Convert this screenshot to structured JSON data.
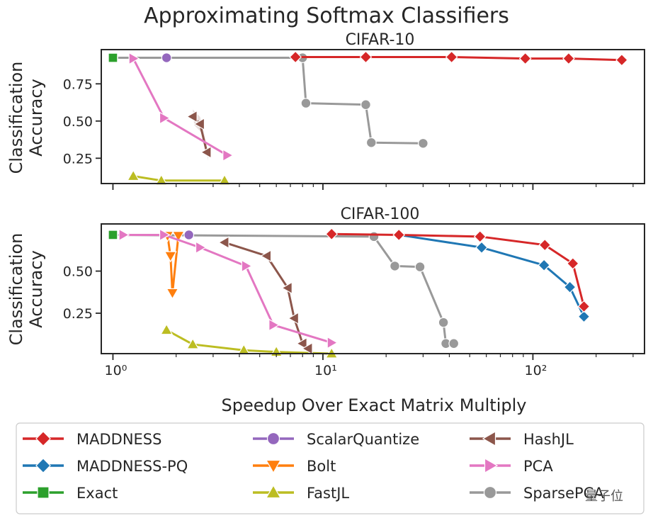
{
  "figure": {
    "title": "Approximating Softmax Classifiers",
    "xlabel": "Speedup Over Exact Matrix Multiply",
    "ylabel_line1": "Classification",
    "ylabel_line2": "Accuracy",
    "watermark": "量子位"
  },
  "chart_data": [
    {
      "type": "line",
      "title": "CIFAR-10",
      "xscale": "log",
      "xlim": [
        0.88,
        340
      ],
      "ylim": [
        0.08,
        0.98
      ],
      "yticks": [
        0.25,
        0.5,
        0.75
      ],
      "ytick_labels": [
        "0.25",
        "0.50",
        "0.75"
      ],
      "series": [
        {
          "name": "Exact",
          "x": [
            1.0
          ],
          "y": [
            0.925
          ]
        },
        {
          "name": "ScalarQuantize",
          "x": [
            1.8
          ],
          "y": [
            0.925
          ]
        },
        {
          "name": "MADDNESS",
          "x": [
            7.4,
            16,
            41,
            92,
            148,
            265
          ],
          "y": [
            0.93,
            0.93,
            0.93,
            0.92,
            0.92,
            0.91
          ]
        },
        {
          "name": "MADDNESS-PQ",
          "x": [
            265
          ],
          "y": [
            0.905
          ]
        },
        {
          "name": "SparsePCA",
          "x": [
            1.0,
            8.0,
            8.3,
            16,
            17,
            30
          ],
          "y": [
            0.925,
            0.925,
            0.62,
            0.61,
            0.355,
            0.35
          ]
        },
        {
          "name": "PCA",
          "x": [
            1.25,
            1.75,
            3.5
          ],
          "y": [
            0.92,
            0.52,
            0.27
          ]
        },
        {
          "name": "HashJL",
          "x": [
            2.4,
            2.6,
            2.8
          ],
          "y": [
            0.53,
            0.48,
            0.29
          ]
        },
        {
          "name": "FastJL",
          "x": [
            1.25,
            1.7,
            3.4
          ],
          "y": [
            0.13,
            0.1,
            0.1
          ]
        }
      ]
    },
    {
      "type": "line",
      "title": "CIFAR-100",
      "xscale": "log",
      "xlim": [
        0.88,
        340
      ],
      "xticks": [
        1,
        10,
        100
      ],
      "xtick_labels": [
        "10⁰",
        "10¹",
        "10²"
      ],
      "ylim": [
        0.01,
        0.78
      ],
      "yticks": [
        0.25,
        0.5
      ],
      "ytick_labels": [
        "0.25",
        "0.50"
      ],
      "series": [
        {
          "name": "Exact",
          "x": [
            1.0
          ],
          "y": [
            0.715
          ]
        },
        {
          "name": "SparsePCA",
          "x": [
            1.0,
            17.5,
            22,
            29,
            37.5,
            38.5,
            42
          ],
          "y": [
            0.715,
            0.705,
            0.53,
            0.525,
            0.195,
            0.07,
            0.07
          ]
        },
        {
          "name": "MADDNESS",
          "x": [
            11,
            23,
            56,
            114,
            155,
            175
          ],
          "y": [
            0.72,
            0.715,
            0.705,
            0.655,
            0.545,
            0.29
          ]
        },
        {
          "name": "MADDNESS-PQ",
          "x": [
            23,
            57,
            113,
            150,
            175
          ],
          "y": [
            0.715,
            0.64,
            0.535,
            0.405,
            0.23
          ]
        },
        {
          "name": "ScalarQuantize",
          "x": [
            2.3
          ],
          "y": [
            0.715
          ]
        },
        {
          "name": "PCA",
          "x": [
            1.12,
            1.75,
            2.6,
            4.3,
            5.8,
            11
          ],
          "y": [
            0.715,
            0.715,
            0.64,
            0.53,
            0.18,
            0.075
          ]
        },
        {
          "name": "HashJL",
          "x": [
            3.4,
            5.4,
            6.8,
            7.3,
            8.0,
            8.5
          ],
          "y": [
            0.67,
            0.59,
            0.4,
            0.22,
            0.07,
            0.04
          ]
        },
        {
          "name": "Bolt",
          "x": [
            1.82,
            1.88,
            1.92,
            2.05
          ],
          "y": [
            0.71,
            0.59,
            0.37,
            0.71
          ]
        },
        {
          "name": "FastJL",
          "x": [
            1.8,
            2.4,
            4.2,
            6,
            11
          ],
          "y": [
            0.15,
            0.065,
            0.03,
            0.02,
            0.01
          ]
        }
      ]
    }
  ],
  "legend": [
    {
      "name": "MADDNESS",
      "color": "#d62728",
      "marker": "diamond"
    },
    {
      "name": "MADDNESS-PQ",
      "color": "#1f77b4",
      "marker": "diamond"
    },
    {
      "name": "Exact",
      "color": "#2ca02c",
      "marker": "square"
    },
    {
      "name": "ScalarQuantize",
      "color": "#9467bd",
      "marker": "circle"
    },
    {
      "name": "Bolt",
      "color": "#ff7f0e",
      "marker": "triangle-down"
    },
    {
      "name": "FastJL",
      "color": "#bcbd22",
      "marker": "triangle-up"
    },
    {
      "name": "HashJL",
      "color": "#8c564b",
      "marker": "triangle-left"
    },
    {
      "name": "PCA",
      "color": "#e377c2",
      "marker": "triangle-right"
    },
    {
      "name": "SparsePCA",
      "color": "#999999",
      "marker": "circle"
    }
  ]
}
